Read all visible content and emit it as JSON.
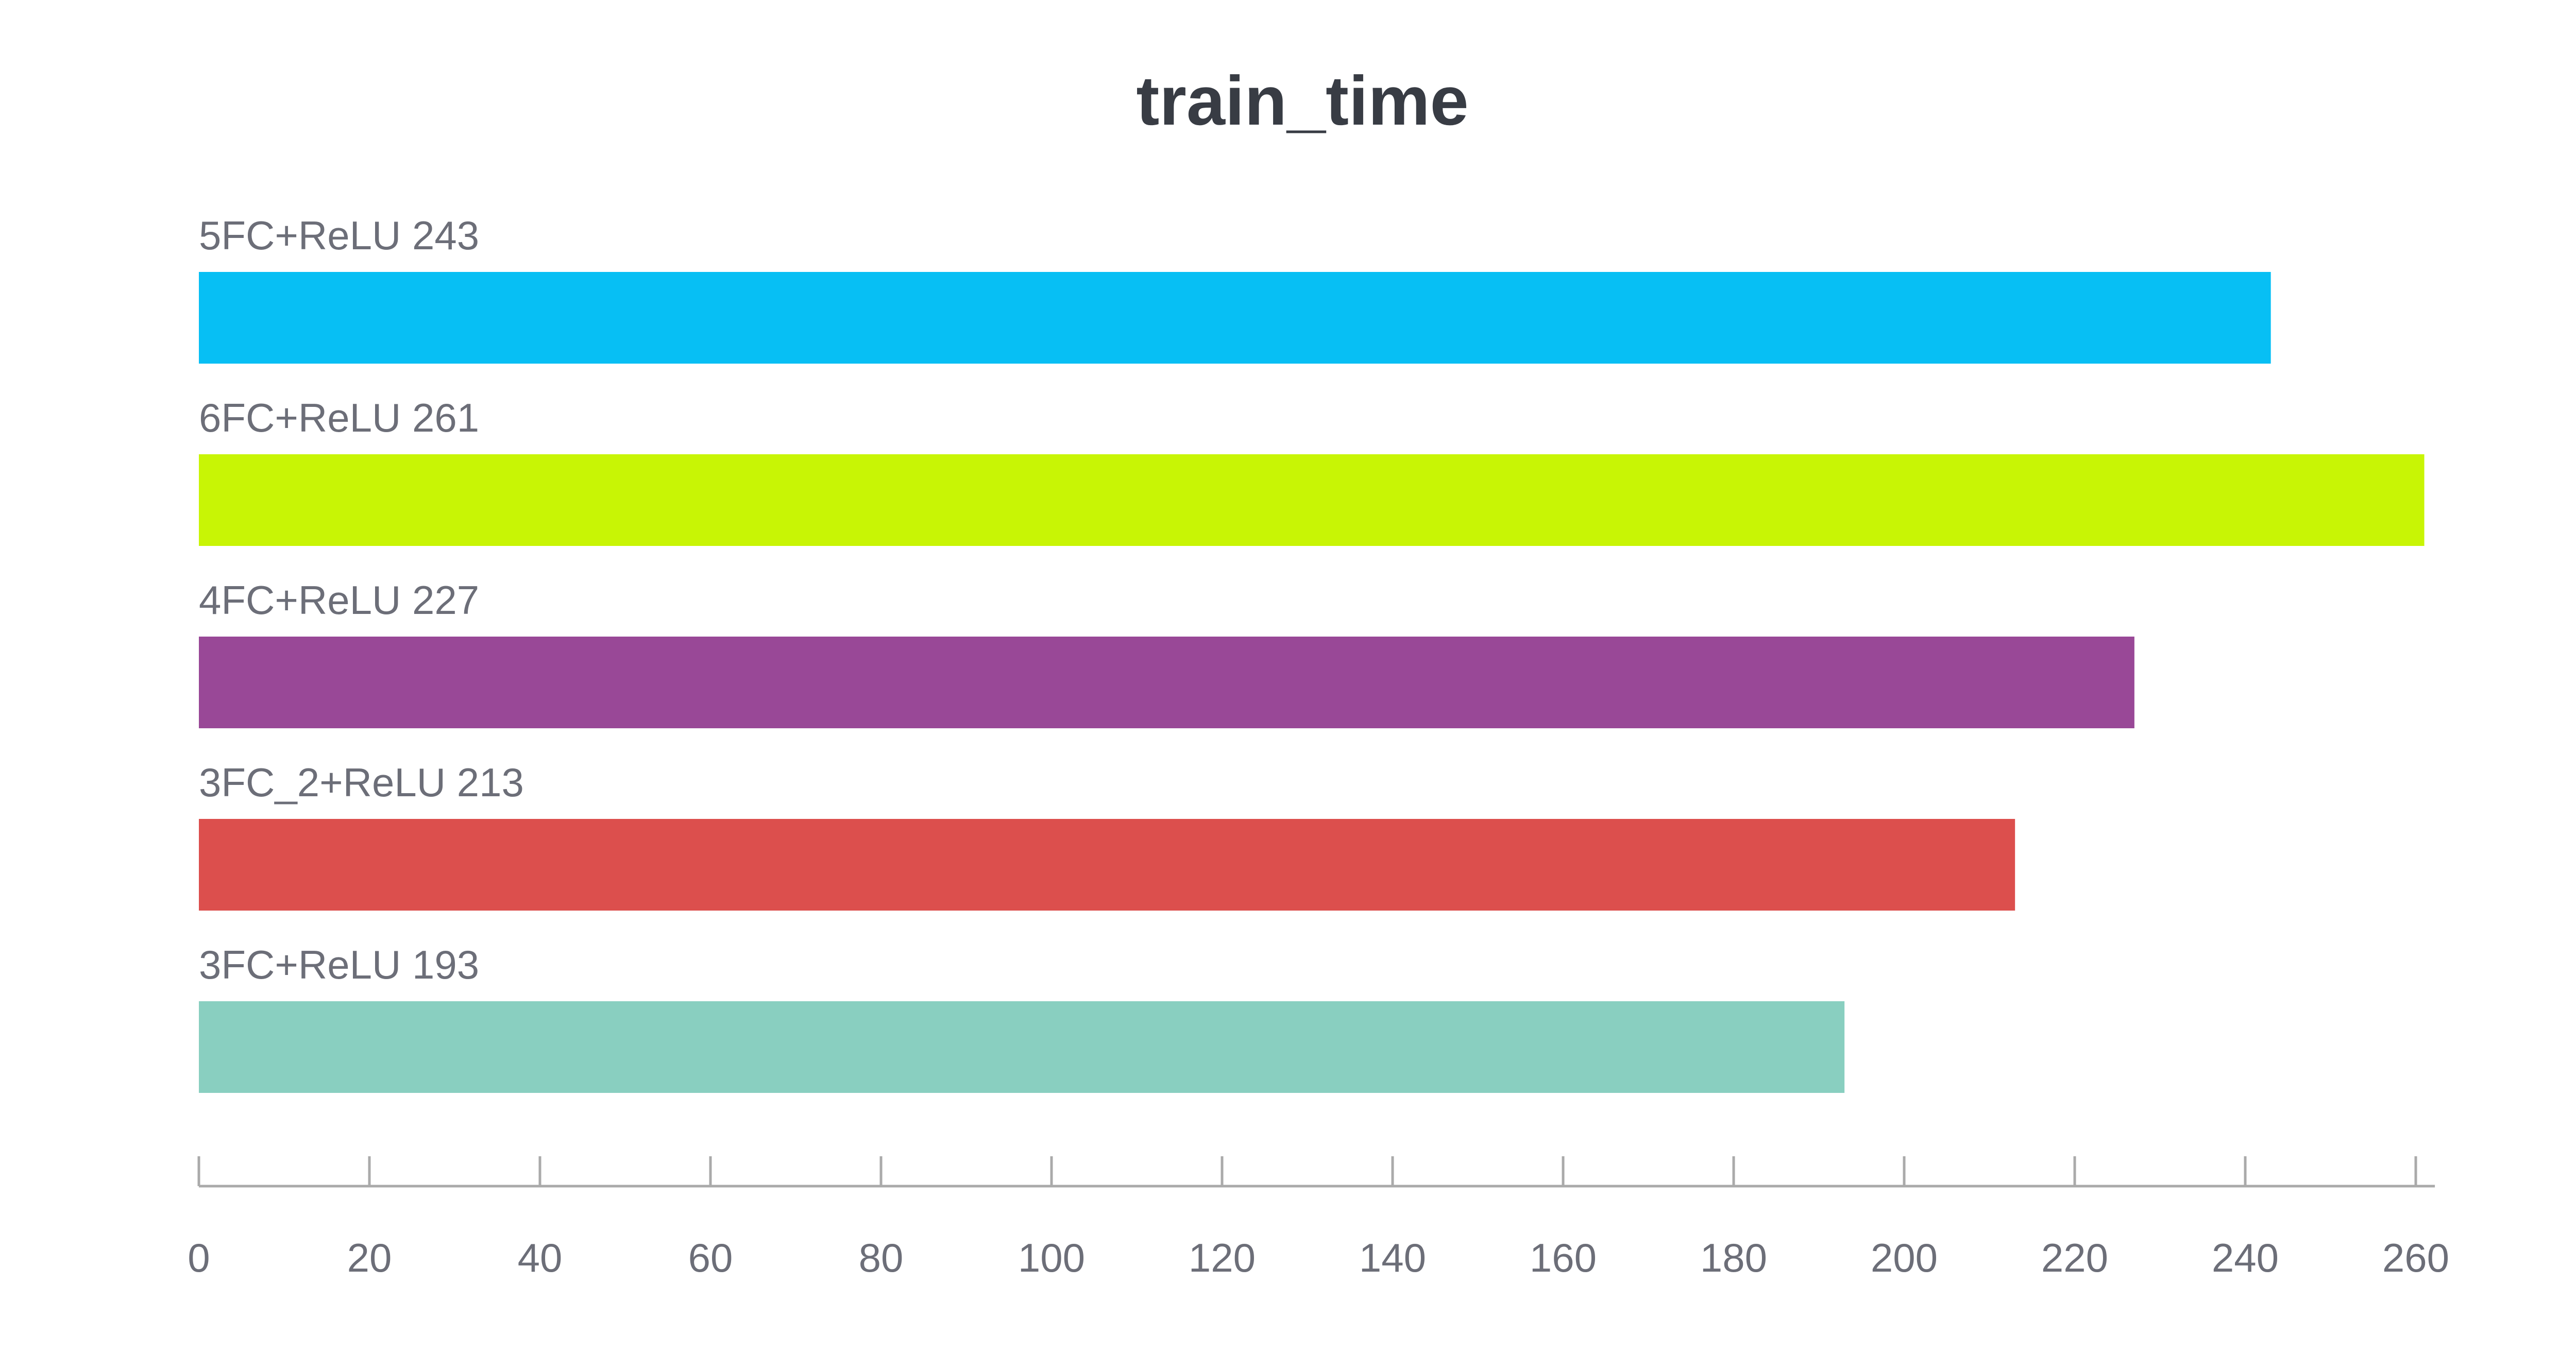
{
  "chart_data": {
    "type": "bar",
    "orientation": "horizontal",
    "title": "train_time",
    "xlabel": "",
    "ylabel": "",
    "xlim": [
      0,
      262
    ],
    "x_ticks": [
      0,
      20,
      40,
      60,
      80,
      100,
      120,
      140,
      160,
      180,
      200,
      220,
      240,
      260
    ],
    "grid": false,
    "legend": "none",
    "bars": [
      {
        "label": "5FC+ReLU",
        "value": 243,
        "color": "#07bff4"
      },
      {
        "label": "6FC+ReLU",
        "value": 261,
        "color": "#c8f505"
      },
      {
        "label": "4FC+ReLU",
        "value": 227,
        "color": "#994897"
      },
      {
        "label": "3FC_2+ReLU",
        "value": 213,
        "color": "#dc4f4d"
      },
      {
        "label": "3FC+ReLU",
        "value": 193,
        "color": "#89cfc0"
      }
    ],
    "colors": {
      "title": "#383c44",
      "label": "#6c6e78",
      "axis": "#aaaaaa"
    }
  }
}
